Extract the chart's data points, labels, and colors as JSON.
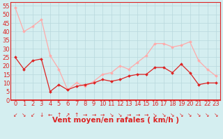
{
  "hours": [
    0,
    1,
    2,
    3,
    4,
    5,
    6,
    7,
    8,
    9,
    10,
    11,
    12,
    13,
    14,
    15,
    16,
    17,
    18,
    19,
    20,
    21,
    22,
    23
  ],
  "wind_avg": [
    25,
    18,
    23,
    24,
    5,
    9,
    6,
    8,
    9,
    10,
    12,
    11,
    12,
    14,
    15,
    15,
    19,
    19,
    16,
    21,
    16,
    9,
    10,
    10
  ],
  "wind_gust": [
    54,
    40,
    43,
    47,
    26,
    18,
    6,
    10,
    8,
    11,
    15,
    16,
    20,
    18,
    22,
    26,
    33,
    33,
    31,
    32,
    34,
    23,
    18,
    14
  ],
  "avg_color": "#dd2222",
  "gust_color": "#ffaaaa",
  "background_color": "#d4eef0",
  "grid_color": "#b8d8dc",
  "xlabel": "Vent moyen/en rafales ( km/h )",
  "ylim": [
    0,
    57
  ],
  "yticks": [
    0,
    5,
    10,
    15,
    20,
    25,
    30,
    35,
    40,
    45,
    50,
    55
  ],
  "tick_fontsize": 6,
  "label_fontsize": 7.5,
  "wind_arrows": [
    "↙",
    "↘",
    "↙",
    "↓",
    "←",
    "↑",
    "↗",
    "↑",
    "→",
    "→",
    "→",
    "↘",
    "↘",
    "→",
    "→",
    "→",
    "↘",
    "↘",
    "↘",
    "↘",
    "↘",
    "↘",
    "↘",
    "↘"
  ]
}
